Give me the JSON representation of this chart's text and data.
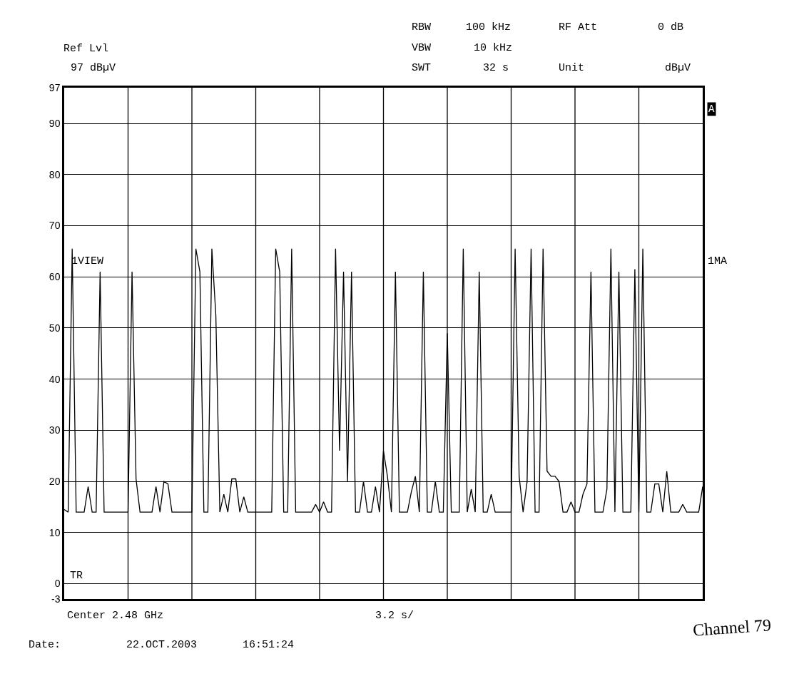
{
  "chart_data": {
    "type": "line",
    "categories": [
      null,
      null,
      null,
      null,
      null,
      null,
      null,
      null,
      null,
      null,
      null,
      null,
      null,
      null,
      null,
      null,
      null,
      null,
      null,
      null,
      null,
      null,
      null,
      null,
      null,
      null,
      null,
      null,
      null,
      null,
      null,
      null,
      null,
      null,
      null,
      null,
      null,
      null,
      null,
      null,
      null,
      null,
      null,
      null,
      null,
      null,
      null,
      null,
      null,
      null,
      null,
      null,
      null,
      null,
      null,
      null,
      null,
      null,
      null,
      null,
      null,
      null,
      null,
      null,
      null,
      null,
      null,
      null,
      null,
      null,
      null,
      null,
      null,
      null,
      null,
      null,
      null,
      null,
      null,
      null,
      null,
      null,
      null,
      null,
      null,
      null,
      null,
      null,
      null,
      null,
      null,
      null,
      null,
      null,
      null,
      null,
      null,
      null,
      null,
      null,
      null,
      null,
      null,
      null,
      null,
      null,
      null,
      null,
      null,
      null,
      null,
      null,
      null,
      null,
      null,
      null,
      null,
      null,
      null,
      null,
      null,
      null,
      null,
      null,
      null,
      null,
      null,
      null,
      null,
      null,
      null,
      null,
      null,
      null,
      null,
      null,
      null,
      null,
      null,
      null,
      null,
      null,
      null,
      null,
      null,
      null,
      null,
      null,
      null,
      null,
      null,
      null,
      null,
      null,
      null,
      null,
      null,
      null,
      null,
      null,
      null
    ],
    "series": [
      {
        "color": "#000000",
        "values": [
          14.5,
          14,
          65.5,
          14,
          14,
          14,
          19,
          14,
          14,
          61,
          14,
          14,
          14,
          14,
          14,
          14,
          14,
          61,
          20.5,
          14,
          14,
          14,
          14,
          19,
          14,
          20,
          19.5,
          14,
          14,
          14,
          14,
          14,
          14,
          65.5,
          61,
          14,
          14,
          65.5,
          52.5,
          14,
          17.5,
          14,
          20.5,
          20.5,
          14,
          17,
          14,
          14,
          14,
          14,
          14,
          14,
          14,
          65.5,
          61,
          14,
          14,
          65.5,
          14,
          14,
          14,
          14,
          14,
          15.5,
          14,
          16,
          14,
          14,
          65.5,
          26,
          61,
          20,
          61,
          14,
          14,
          20,
          14,
          14,
          19,
          14,
          26,
          21,
          14,
          61,
          14,
          14,
          14,
          18,
          21,
          14,
          61,
          14,
          14,
          20,
          14,
          14,
          49,
          14,
          14,
          14,
          65.5,
          14,
          18.5,
          14,
          61,
          14,
          14,
          17.5,
          14,
          14,
          14,
          14,
          14,
          65.5,
          21,
          14,
          20,
          65.5,
          14,
          14,
          65.5,
          22,
          21,
          21,
          20,
          14,
          14,
          16,
          14,
          14,
          17.5,
          19.5,
          61,
          14,
          14,
          14,
          18.5,
          65.5,
          14,
          61,
          14,
          14,
          14,
          61.5,
          14,
          65.5,
          14,
          14,
          19.5,
          19.5,
          14,
          22,
          14,
          14,
          14,
          15.5,
          14,
          14,
          14,
          14,
          19
        ]
      }
    ],
    "ylim": [
      -3,
      97
    ],
    "yticks": [
      -3,
      0,
      10,
      20,
      30,
      40,
      50,
      60,
      70,
      80,
      90,
      97
    ],
    "tick_labels": "y",
    "grid": true,
    "marker": "none",
    "line_style": "solid",
    "annotations": [
      "Ref Lvl",
      "97 dBµV",
      "RBW",
      "100 kHz",
      "VBW",
      "10 kHz",
      "SWT",
      "32 s",
      "RF Att",
      "0 dB",
      "Unit",
      "dBµV",
      "A",
      "1VIEW",
      "1MA",
      "TR",
      "Center 2.48 GHz",
      "3.2 s/",
      "Date:",
      "22.OCT.2003",
      "16:51:24",
      "Channel 79"
    ]
  }
}
